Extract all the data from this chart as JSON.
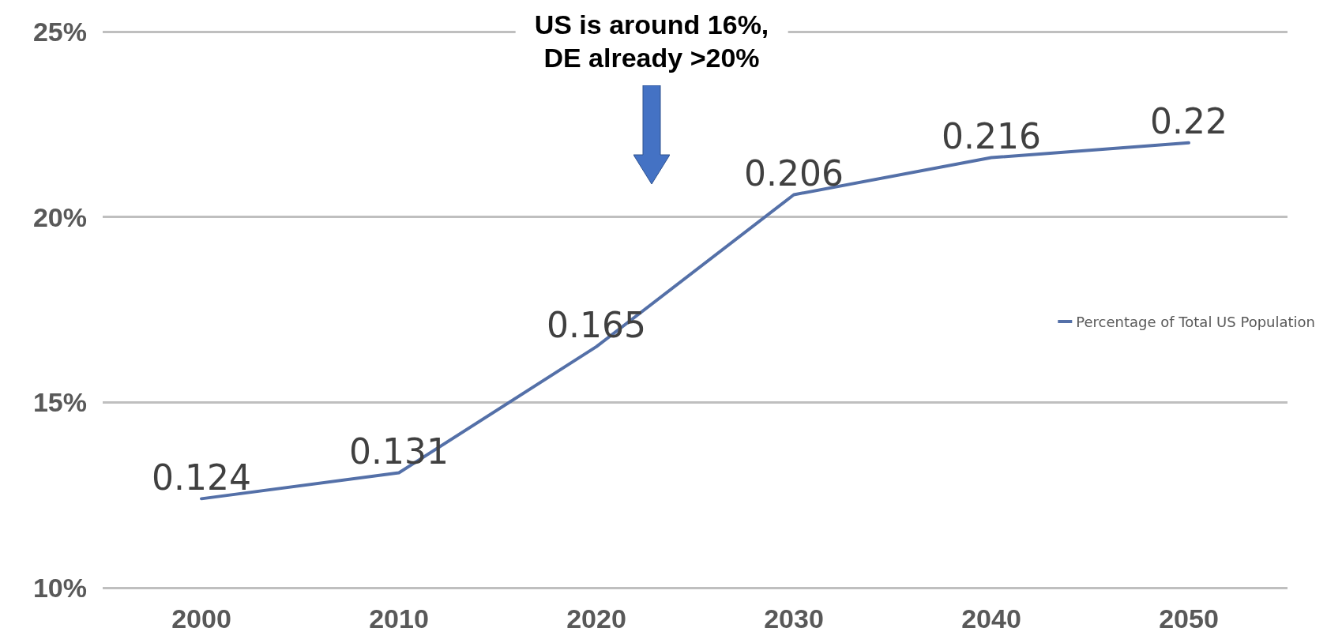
{
  "chart_data": {
    "type": "line",
    "categories": [
      "2000",
      "2010",
      "2020",
      "2030",
      "2040",
      "2050"
    ],
    "series": [
      {
        "name": "Percentage of Total US Population",
        "color": "#5470a8",
        "values": [
          0.124,
          0.131,
          0.165,
          0.206,
          0.216,
          0.22
        ]
      }
    ],
    "ylim": [
      0.1,
      0.25
    ],
    "yticks": [
      {
        "value": 0.1,
        "label": "10%"
      },
      {
        "value": 0.15,
        "label": "15%"
      },
      {
        "value": 0.2,
        "label": "20%"
      },
      {
        "value": 0.25,
        "label": "25%"
      }
    ],
    "annotations": [
      "US is around 16%,\nDE already >20%"
    ],
    "data_labels": true,
    "grid": "y",
    "legend": "right",
    "marker": "none"
  }
}
